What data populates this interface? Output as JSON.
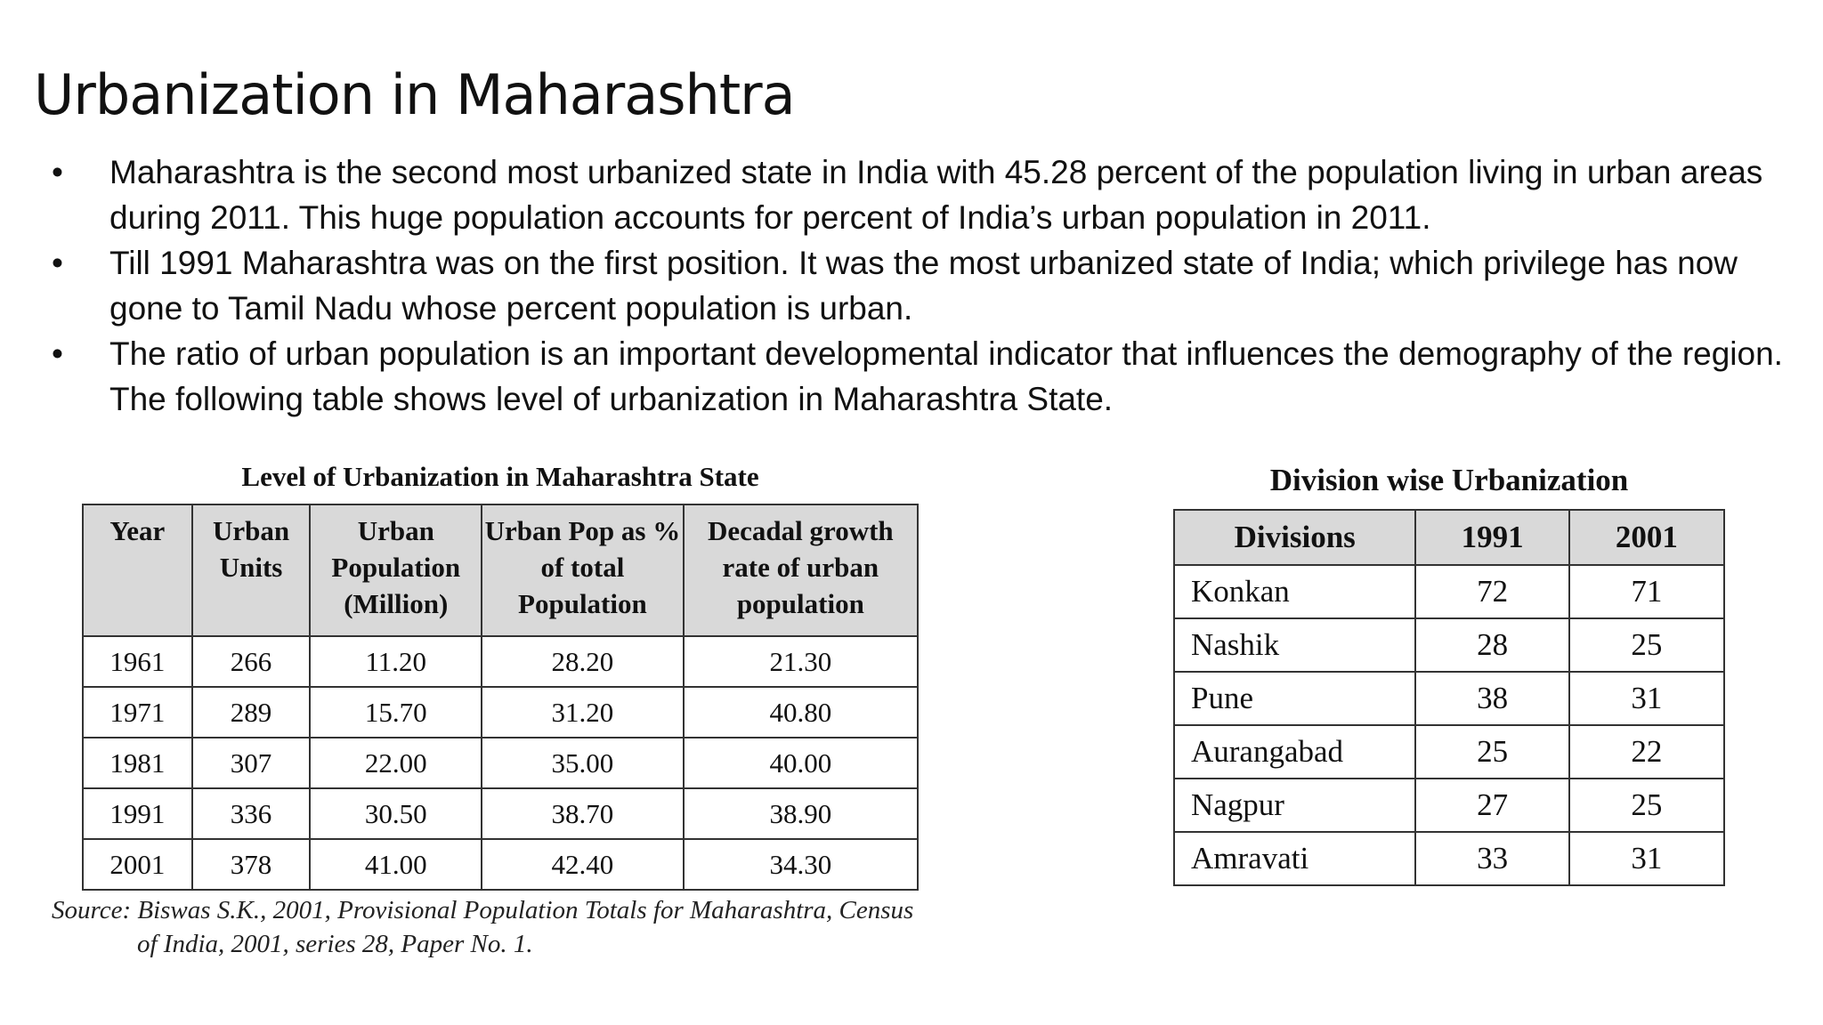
{
  "slide": {
    "title": "Urbanization in Maharashtra",
    "bullet_glyph": "•",
    "bullets": [
      "Maharashtra is the second most urbanized state in India with 45.28 percent of the population living in urban areas during 2011. This huge population accounts for percent of India’s urban population in 2011.",
      "Till 1991 Maharashtra was on the first position. It was the most urbanized state of India; which privilege has now gone to Tamil Nadu whose percent population is urban.",
      "The ratio of urban population is an important developmental indicator that influences the demography of the region. The following table shows level of urbanization in Maharashtra State."
    ]
  },
  "table1": {
    "caption": "Level of Urbanization in Maharashtra State",
    "headers": [
      "Year",
      "Urban Units",
      "Urban Population (Million)",
      "Urban Pop as % of total Population",
      "Decadal growth rate of urban population"
    ],
    "rows": [
      [
        "1961",
        "266",
        "11.20",
        "28.20",
        "21.30"
      ],
      [
        "1971",
        "289",
        "15.70",
        "31.20",
        "40.80"
      ],
      [
        "1981",
        "307",
        "22.00",
        "35.00",
        "40.00"
      ],
      [
        "1991",
        "336",
        "30.50",
        "38.70",
        "38.90"
      ],
      [
        "2001",
        "378",
        "41.00",
        "42.40",
        "34.30"
      ]
    ],
    "source_line1": "Source: Biswas S.K., 2001, Provisional Population Totals for Maharashtra, Census",
    "source_line2": "of India, 2001, series 28, Paper No. 1."
  },
  "table2": {
    "caption": "Division wise Urbanization",
    "headers": [
      "Divisions",
      "1991",
      "2001"
    ],
    "rows": [
      [
        "Konkan",
        "72",
        "71"
      ],
      [
        "Nashik",
        "28",
        "25"
      ],
      [
        "Pune",
        "38",
        "31"
      ],
      [
        "Aurangabad",
        "25",
        "22"
      ],
      [
        "Nagpur",
        "27",
        "25"
      ],
      [
        "Amravati",
        "33",
        "31"
      ]
    ]
  }
}
